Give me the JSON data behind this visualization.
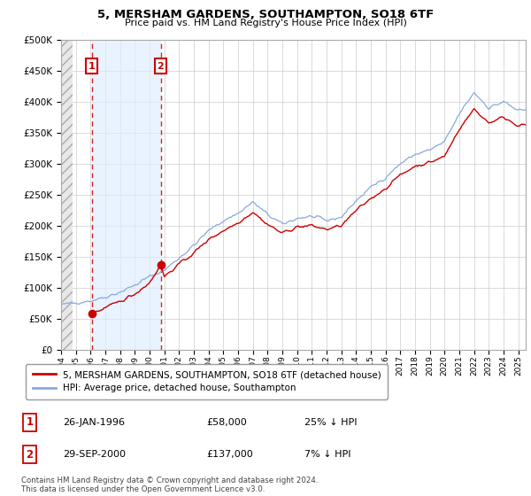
{
  "title": "5, MERSHAM GARDENS, SOUTHAMPTON, SO18 6TF",
  "subtitle": "Price paid vs. HM Land Registry's House Price Index (HPI)",
  "legend_line1": "5, MERSHAM GARDENS, SOUTHAMPTON, SO18 6TF (detached house)",
  "legend_line2": "HPI: Average price, detached house, Southampton",
  "footnote": "Contains HM Land Registry data © Crown copyright and database right 2024.\nThis data is licensed under the Open Government Licence v3.0.",
  "transaction1_label": "1",
  "transaction1_date": "26-JAN-1996",
  "transaction1_price": "£58,000",
  "transaction1_hpi": "25% ↓ HPI",
  "transaction1_year": 1996.07,
  "transaction1_value": 58000,
  "transaction2_label": "2",
  "transaction2_date": "29-SEP-2000",
  "transaction2_price": "£137,000",
  "transaction2_hpi": "7% ↓ HPI",
  "transaction2_year": 2000.75,
  "transaction2_value": 137000,
  "ylim": [
    0,
    500000
  ],
  "xlim_start": 1994.0,
  "xlim_end": 2025.5,
  "hatch_end": 1994.8,
  "shade_start": 1996.07,
  "shade_end": 2000.75,
  "price_line_color": "#cc0000",
  "hpi_line_color": "#88aadd",
  "hatch_facecolor": "#e8e8e8",
  "shade_color": "#ddeeff",
  "grid_color": "#cccccc",
  "bg_color": "#ffffff",
  "seed": 42,
  "hpi_base_years": [
    1994,
    1995,
    1996,
    1997,
    1998,
    1999,
    2000,
    2001,
    2002,
    2003,
    2004,
    2005,
    2006,
    2007,
    2008,
    2009,
    2010,
    2011,
    2012,
    2013,
    2014,
    2015,
    2016,
    2017,
    2018,
    2019,
    2020,
    2021,
    2022,
    2023,
    2024,
    2025
  ],
  "hpi_base_vals": [
    72000,
    76000,
    79000,
    85000,
    93000,
    104000,
    118000,
    128000,
    148000,
    168000,
    192000,
    208000,
    220000,
    238000,
    218000,
    202000,
    212000,
    215000,
    208000,
    214000,
    240000,
    262000,
    278000,
    300000,
    315000,
    322000,
    335000,
    380000,
    415000,
    390000,
    400000,
    385000
  ],
  "price_base_years": [
    1996.07,
    1997,
    1998,
    1999,
    2000,
    2000.75,
    2001,
    2002,
    2003,
    2004,
    2005,
    2006,
    2007,
    2008,
    2009,
    2010,
    2011,
    2012,
    2013,
    2014,
    2015,
    2016,
    2017,
    2018,
    2019,
    2020,
    2021,
    2022,
    2023,
    2024,
    2025
  ],
  "price_base_vals": [
    58000,
    67000,
    78000,
    90000,
    108000,
    137000,
    118000,
    138000,
    156000,
    178000,
    192000,
    205000,
    222000,
    202000,
    188000,
    198000,
    200000,
    194000,
    200000,
    224000,
    244000,
    260000,
    282000,
    296000,
    302000,
    312000,
    356000,
    388000,
    366000,
    375000,
    362000
  ]
}
